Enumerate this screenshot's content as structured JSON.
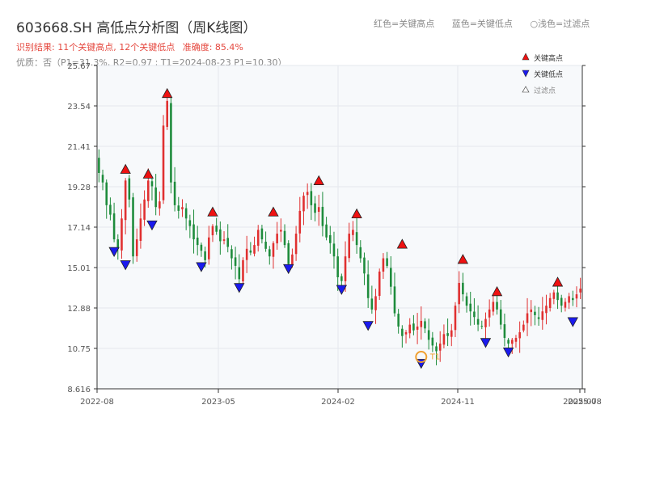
{
  "header": {
    "title": "603668.SH 高低点分析图（周K线图）",
    "result_label": "识别结果: 11个关键高点, 12个关键低点",
    "accuracy_label": "准确度: 85.4%",
    "quality_line": "优质：否（P1=31.3%, R2=0.97 ; T1=2024-08-23 P1=10.30）"
  },
  "legend_top": {
    "red": "红色=关键高点",
    "blue": "蓝色=关键低点",
    "light": "○浅色=过滤点"
  },
  "legend_box": {
    "high": "关键高点",
    "low": "关键低点",
    "filtered": "过滤点"
  },
  "colors": {
    "up": "#e03030",
    "down": "#1e8c3c",
    "high_marker": "#ee1111",
    "low_marker": "#1a1aee",
    "t1_marker": "#f0a030",
    "grid": "#e4e8ee",
    "plot_bg": "#f7f9fb"
  },
  "chart_data": {
    "type": "candlestick",
    "timeframe": "weekly",
    "ylim": [
      8.616,
      25.67
    ],
    "y_ticks": [
      "25.67",
      "23.54",
      "21.41",
      "19.28",
      "17.14",
      "15.01",
      "12.88",
      "10.75",
      "8.616"
    ],
    "x_ticks": [
      "2022-08",
      "2023-05",
      "2024-02",
      "2024-11",
      "2025-07",
      "2025-08"
    ],
    "close_path": [
      20.0,
      19.5,
      18.3,
      17.8,
      16.5,
      16.0,
      17.6,
      19.6,
      18.6,
      15.6,
      16.5,
      17.6,
      18.6,
      19.6,
      19.3,
      18.2,
      18.5,
      22.5,
      23.8,
      19.5,
      18.3,
      18.0,
      18.2,
      17.6,
      17.2,
      16.5,
      16.2,
      15.9,
      15.4,
      16.6,
      17.2,
      16.9,
      16.4,
      16.5,
      16.1,
      15.5,
      15.1,
      14.4,
      15.4,
      16.0,
      15.8,
      16.2,
      17.0,
      16.5,
      16.0,
      15.6,
      16.3,
      16.8,
      17.0,
      16.2,
      15.2,
      15.7,
      16.8,
      18.0,
      18.8,
      19.0,
      18.3,
      17.9,
      18.2,
      17.2,
      16.6,
      16.3,
      15.6,
      14.5,
      14.3,
      15.6,
      16.8,
      17.0,
      16.2,
      15.5,
      14.7,
      13.4,
      12.8,
      13.5,
      14.8,
      15.5,
      15.1,
      14.0,
      12.6,
      11.9,
      11.4,
      11.6,
      12.0,
      11.7,
      11.9,
      12.2,
      11.8,
      11.2,
      10.9,
      10.6,
      11.0,
      11.5,
      11.4,
      11.7,
      13.0,
      14.2,
      13.6,
      13.0,
      12.7,
      12.4,
      12.0,
      11.9,
      12.3,
      12.8,
      13.2,
      12.8,
      12.0,
      11.3,
      11.0,
      11.2,
      11.3,
      11.6,
      12.0,
      12.6,
      12.8,
      12.5,
      12.3,
      12.7,
      13.0,
      13.4,
      13.7,
      13.3,
      13.0,
      13.2,
      13.5,
      13.3,
      13.6,
      13.9
    ],
    "key_highs": [
      {
        "index": 7,
        "price": 19.85
      },
      {
        "index": 13,
        "price": 19.6
      },
      {
        "index": 18,
        "price": 23.85
      },
      {
        "index": 30,
        "price": 17.6
      },
      {
        "index": 46,
        "price": 17.6
      },
      {
        "index": 58,
        "price": 19.25
      },
      {
        "index": 68,
        "price": 17.5
      },
      {
        "index": 80,
        "price": 15.9
      },
      {
        "index": 96,
        "price": 15.1
      },
      {
        "index": 105,
        "price": 13.4
      },
      {
        "index": 121,
        "price": 13.9
      }
    ],
    "key_lows": [
      {
        "index": 4,
        "price": 16.2
      },
      {
        "index": 7,
        "price": 15.5
      },
      {
        "index": 14,
        "price": 17.6
      },
      {
        "index": 27,
        "price": 15.4
      },
      {
        "index": 37,
        "price": 14.3
      },
      {
        "index": 50,
        "price": 15.3
      },
      {
        "index": 64,
        "price": 14.2
      },
      {
        "index": 71,
        "price": 12.3
      },
      {
        "index": 85,
        "price": 10.3
      },
      {
        "index": 102,
        "price": 11.4
      },
      {
        "index": 108,
        "price": 10.9
      },
      {
        "index": 125,
        "price": 12.5
      }
    ],
    "annotation": {
      "label": "T1",
      "index": 85,
      "price": 10.3
    }
  }
}
